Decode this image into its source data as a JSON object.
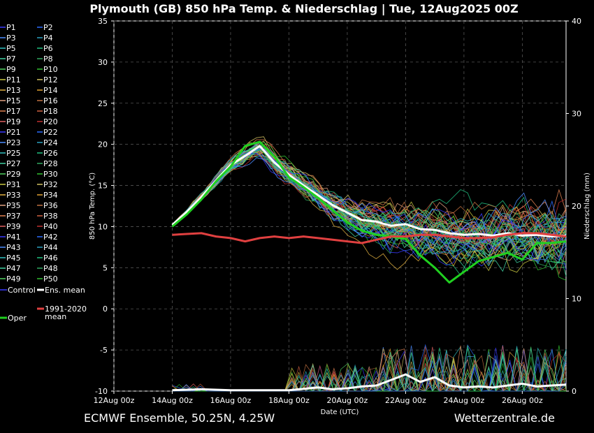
{
  "chart_data": {
    "type": "line",
    "title": "Plymouth  (GB)  850 hPa Temp. & Niederschlag | Tue, 12Aug2025 00Z",
    "xlabel": "Date (UTC)",
    "ylabel": "850 hPa Temp. (°C)",
    "y2label": "Niederschlag (mm)",
    "xlim": [
      0,
      15.5
    ],
    "ylim": [
      -10,
      35
    ],
    "y2lim": [
      0,
      40
    ],
    "x_ticks": [
      {
        "value": 0,
        "label": "12Aug 00z"
      },
      {
        "value": 2,
        "label": "14Aug 00z"
      },
      {
        "value": 4,
        "label": "16Aug 00z"
      },
      {
        "value": 6,
        "label": "18Aug 00z"
      },
      {
        "value": 8,
        "label": "20Aug 00z"
      },
      {
        "value": 10,
        "label": "22Aug 00z"
      },
      {
        "value": 12,
        "label": "24Aug 00z"
      },
      {
        "value": 14,
        "label": "26Aug 00z"
      }
    ],
    "y_ticks": [
      -10,
      -5,
      0,
      5,
      10,
      15,
      20,
      25,
      30,
      35
    ],
    "y2_ticks": [
      0,
      10,
      20,
      30,
      40
    ],
    "grid": true,
    "legend_position": "left",
    "legend": [
      {
        "name": "P1",
        "color": "#3a3aff"
      },
      {
        "name": "P2",
        "color": "#2a6cff"
      },
      {
        "name": "P3",
        "color": "#4a8cff"
      },
      {
        "name": "P4",
        "color": "#2aa0c0"
      },
      {
        "name": "P5",
        "color": "#30c0c0"
      },
      {
        "name": "P6",
        "color": "#20c080"
      },
      {
        "name": "P7",
        "color": "#40d0a0"
      },
      {
        "name": "P8",
        "color": "#30a860"
      },
      {
        "name": "P9",
        "color": "#50d060"
      },
      {
        "name": "P10",
        "color": "#30c030"
      },
      {
        "name": "P11",
        "color": "#c8c840"
      },
      {
        "name": "P12",
        "color": "#d0c060"
      },
      {
        "name": "P13",
        "color": "#e0b040"
      },
      {
        "name": "P14",
        "color": "#e0a030"
      },
      {
        "name": "P15",
        "color": "#e0a080"
      },
      {
        "name": "P16",
        "color": "#c07040"
      },
      {
        "name": "P17",
        "color": "#e08050"
      },
      {
        "name": "P18",
        "color": "#d06040"
      },
      {
        "name": "P19",
        "color": "#e06060"
      },
      {
        "name": "P20",
        "color": "#c03030"
      },
      {
        "name": "P21",
        "color": "#3a3aff"
      },
      {
        "name": "P22",
        "color": "#2a6cff"
      },
      {
        "name": "P23",
        "color": "#4a8cff"
      },
      {
        "name": "P24",
        "color": "#2aa0c0"
      },
      {
        "name": "P25",
        "color": "#30c0c0"
      },
      {
        "name": "P26",
        "color": "#20c080"
      },
      {
        "name": "P27",
        "color": "#40d0a0"
      },
      {
        "name": "P28",
        "color": "#30a860"
      },
      {
        "name": "P29",
        "color": "#50d060"
      },
      {
        "name": "P30",
        "color": "#30c030"
      },
      {
        "name": "P31",
        "color": "#c8c840"
      },
      {
        "name": "P32",
        "color": "#d0c060"
      },
      {
        "name": "P33",
        "color": "#e0b040"
      },
      {
        "name": "P34",
        "color": "#e0a030"
      },
      {
        "name": "P35",
        "color": "#e0a080"
      },
      {
        "name": "P36",
        "color": "#c07040"
      },
      {
        "name": "P37",
        "color": "#e08050"
      },
      {
        "name": "P38",
        "color": "#d06040"
      },
      {
        "name": "P39",
        "color": "#e06060"
      },
      {
        "name": "P40",
        "color": "#c03030"
      },
      {
        "name": "P41",
        "color": "#3a3aff"
      },
      {
        "name": "P42",
        "color": "#2a6cff"
      },
      {
        "name": "P43",
        "color": "#4a8cff"
      },
      {
        "name": "P44",
        "color": "#2aa0c0"
      },
      {
        "name": "P45",
        "color": "#30c0c0"
      },
      {
        "name": "P46",
        "color": "#20c080"
      },
      {
        "name": "P47",
        "color": "#40d0a0"
      },
      {
        "name": "P48",
        "color": "#30a860"
      },
      {
        "name": "P49",
        "color": "#50d060"
      },
      {
        "name": "P50",
        "color": "#30c030"
      },
      {
        "name": "Control",
        "color": "#3a3aff"
      },
      {
        "name": "Ens. mean",
        "color": "#ffffff"
      },
      {
        "name": "Oper",
        "color": "#20d020"
      },
      {
        "name": "1991-2020",
        "name2": "mean",
        "color": "#e04040"
      }
    ],
    "series": [
      {
        "name": "Ens. mean",
        "color": "#ffffff",
        "width": 3,
        "x": [
          2,
          2.5,
          3,
          3.5,
          4,
          4.5,
          5,
          5.5,
          6,
          6.5,
          7,
          7.5,
          8,
          8.5,
          9,
          9.5,
          10,
          10.5,
          11,
          11.5,
          12,
          12.5,
          13,
          13.5,
          14,
          14.5,
          15,
          15.5
        ],
        "y": [
          10.2,
          11.8,
          13.6,
          15.6,
          17.5,
          18.6,
          19.8,
          17.8,
          16.3,
          15.0,
          13.8,
          12.6,
          11.7,
          10.8,
          10.6,
          10.1,
          10.3,
          9.7,
          9.6,
          9.2,
          9.0,
          9.1,
          8.9,
          9.2,
          8.9,
          9.0,
          8.8,
          8.9
        ]
      },
      {
        "name": "Oper",
        "color": "#20d020",
        "width": 3,
        "x": [
          2,
          2.5,
          3,
          3.5,
          4,
          4.5,
          5,
          5.5,
          6,
          6.5,
          7,
          7.5,
          8,
          8.5,
          9,
          9.5,
          10,
          10.5,
          11,
          11.5,
          12,
          12.5,
          13,
          13.5,
          14,
          14.5,
          15,
          15.5
        ],
        "y": [
          10.0,
          11.5,
          13.3,
          15.5,
          17.3,
          19.8,
          20.3,
          18.5,
          16.0,
          14.8,
          13.5,
          12.0,
          10.5,
          9.5,
          9.0,
          8.8,
          8.5,
          6.5,
          5.0,
          3.2,
          4.5,
          5.8,
          6.3,
          6.8,
          6.0,
          8.0,
          8.0,
          8.2
        ]
      },
      {
        "name": "1991-2020 mean",
        "color": "#e04040",
        "width": 3,
        "x": [
          2,
          2.5,
          3,
          3.5,
          4,
          4.5,
          5,
          5.5,
          6,
          6.5,
          7,
          7.5,
          8,
          8.5,
          9,
          9.5,
          10,
          10.5,
          11,
          11.5,
          12,
          12.5,
          13,
          13.5,
          14,
          14.5,
          15,
          15.5
        ],
        "y": [
          9.0,
          9.1,
          9.2,
          8.8,
          8.6,
          8.2,
          8.6,
          8.8,
          8.6,
          8.8,
          8.6,
          8.4,
          8.2,
          8.0,
          8.4,
          8.8,
          8.8,
          9.0,
          9.0,
          8.8,
          8.6,
          8.6,
          8.7,
          9.0,
          9.2,
          9.2,
          9.0,
          8.8
        ]
      }
    ],
    "precip_series": [
      {
        "name": "Ens. mean",
        "color": "#ffffff",
        "width": 3,
        "x": [
          2,
          3,
          4,
          5,
          6,
          7,
          7.5,
          8,
          8.5,
          9,
          9.5,
          10,
          10.5,
          11,
          11.5,
          12,
          12.5,
          13,
          13.5,
          14,
          14.5,
          15,
          15.5
        ],
        "y": [
          0.1,
          0.2,
          0.1,
          0.1,
          0.1,
          0.4,
          0.2,
          0.3,
          0.5,
          0.6,
          1.2,
          1.8,
          1.0,
          1.5,
          0.6,
          0.4,
          0.5,
          0.4,
          0.6,
          0.8,
          0.5,
          0.6,
          0.7
        ]
      }
    ],
    "footer_left": "ECMWF Ensemble, 50.25N, 4.25W",
    "footer_right": "Wetterzentrale.de"
  }
}
